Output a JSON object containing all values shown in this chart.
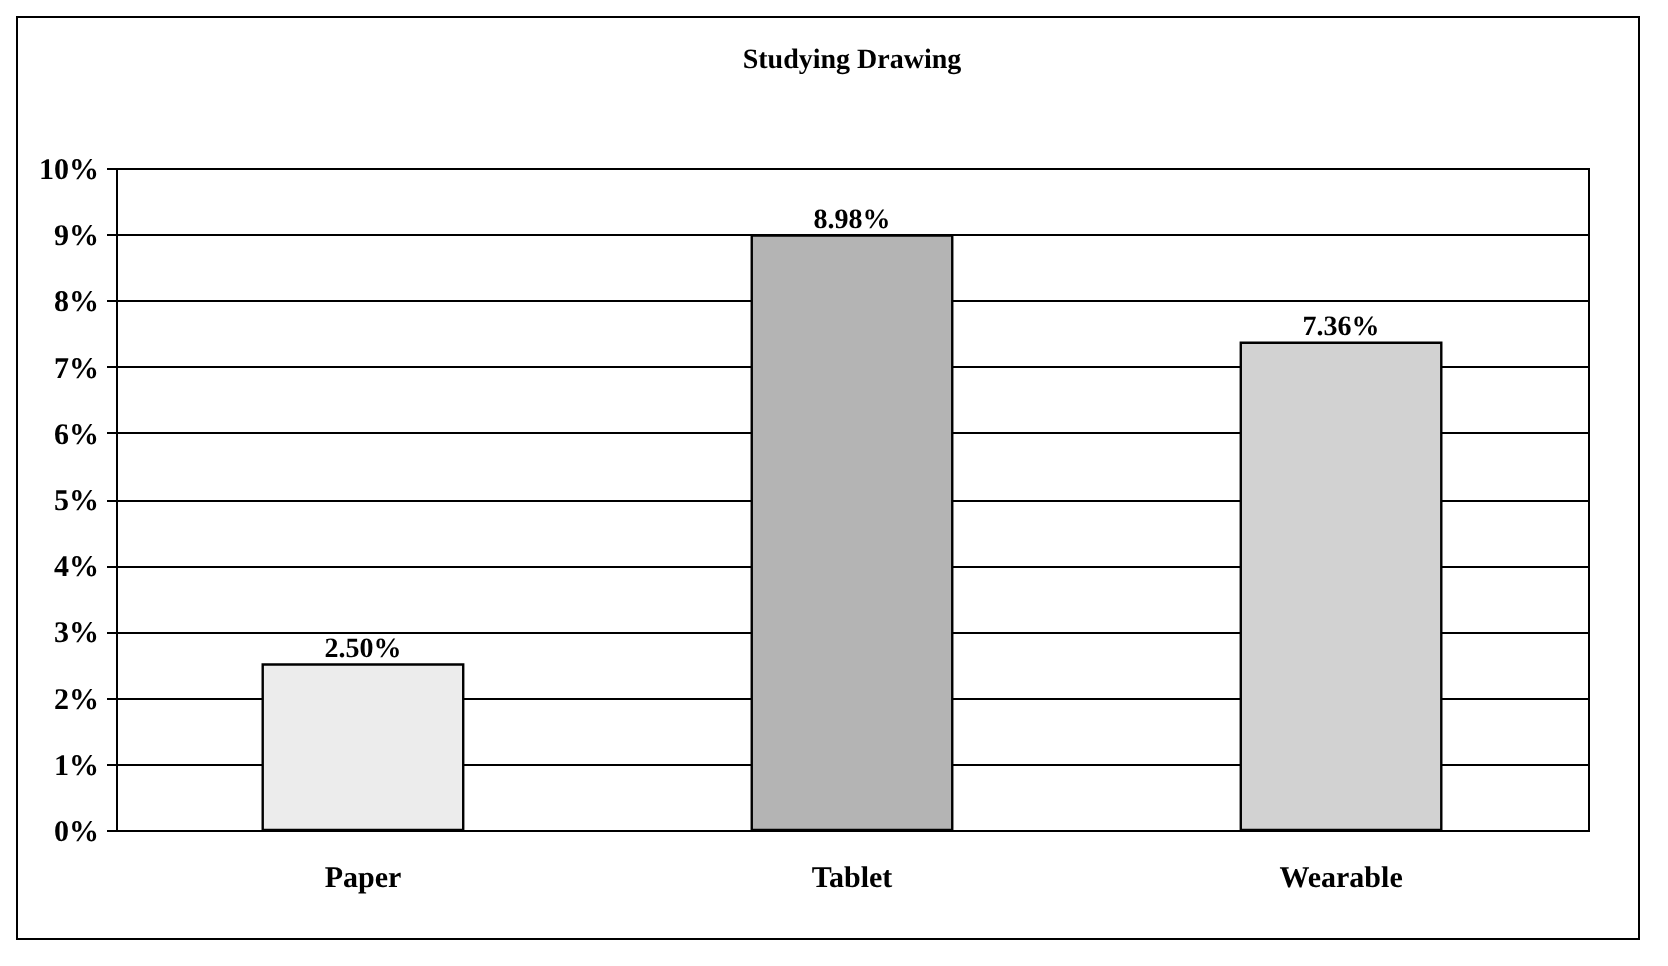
{
  "chart_data": {
    "type": "bar",
    "title": "Studying Drawing",
    "categories": [
      "Paper",
      "Tablet",
      "Wearable"
    ],
    "values": [
      2.5,
      8.98,
      7.36
    ],
    "colors": [
      "#ececec",
      "#b4b4b4",
      "#d2d2d2"
    ],
    "value_labels": [
      "2.50%",
      "8.98%",
      "7.36%"
    ],
    "ylim": [
      0,
      10
    ],
    "yticks": [
      {
        "value": 0,
        "label": "0%"
      },
      {
        "value": 1,
        "label": "1%"
      },
      {
        "value": 2,
        "label": "2%"
      },
      {
        "value": 3,
        "label": "3%"
      },
      {
        "value": 4,
        "label": "4%"
      },
      {
        "value": 5,
        "label": "5%"
      },
      {
        "value": 6,
        "label": "6%"
      },
      {
        "value": 7,
        "label": "7%"
      },
      {
        "value": 8,
        "label": "8%"
      },
      {
        "value": 9,
        "label": "9%"
      },
      {
        "value": 10,
        "label": "10%"
      }
    ],
    "grid": "y"
  }
}
